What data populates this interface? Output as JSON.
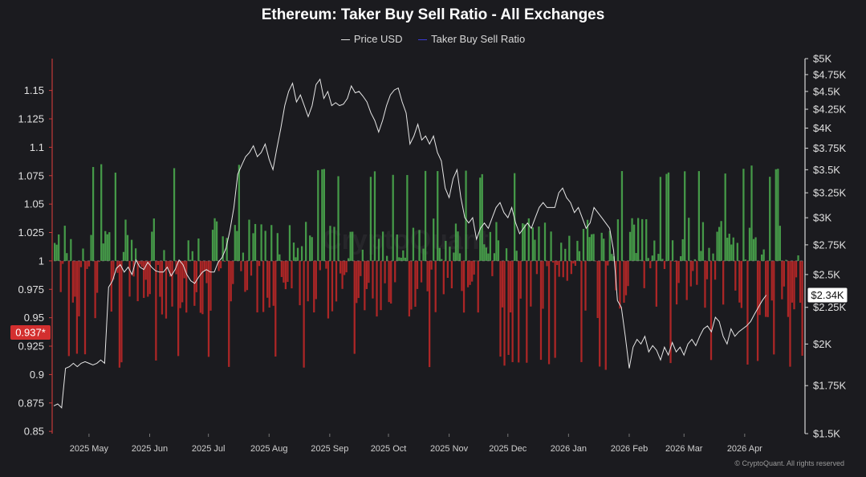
{
  "chart_data": {
    "type": "bar",
    "title": "Ethereum: Taker Buy Sell Ratio - All Exchanges",
    "legend": [
      {
        "name": "Price USD",
        "color": "#e0e0e0"
      },
      {
        "name": "Taker Buy Sell Ratio",
        "color": "#3b3bd6"
      }
    ],
    "y_left": {
      "ticks": [
        "1.15",
        "1.125",
        "1.1",
        "1.075",
        "1.05",
        "1.025",
        "1",
        "0.975",
        "0.95",
        "0.925",
        "0.9",
        "0.875",
        "0.85"
      ],
      "tick_values": [
        1.15,
        1.125,
        1.1,
        1.075,
        1.05,
        1.025,
        1,
        0.975,
        0.95,
        0.925,
        0.9,
        0.875,
        0.85
      ],
      "ylim": [
        0.848,
        1.178
      ],
      "baseline": 1
    },
    "y_right": {
      "ticks": [
        "$5K",
        "$4.75K",
        "$4.5K",
        "$4.25K",
        "$4K",
        "$3.75K",
        "$3.5K",
        "$3.25K",
        "$3K",
        "$2.75K",
        "$2.5K",
        "$2.25K",
        "$2K",
        "$1.75K",
        "$1.5K"
      ],
      "tick_values": [
        5000,
        4750,
        4500,
        4250,
        4000,
        3750,
        3500,
        3250,
        3000,
        2750,
        2500,
        2250,
        2000,
        1750,
        1500
      ],
      "scale": "log",
      "ylim": [
        1500,
        5000
      ]
    },
    "x_ticks": [
      "2025 May",
      "2025 Jun",
      "2025 Jul",
      "2025 Aug",
      "2025 Sep",
      "2025 Oct",
      "2025 Nov",
      "2025 Dec",
      "2026 Jan",
      "2026 Feb",
      "2026 Mar",
      "2026 Apr"
    ],
    "x_tick_days": [
      18,
      49,
      79,
      110,
      141,
      171,
      202,
      232,
      263,
      294,
      322,
      353
    ],
    "x_range_days": [
      0,
      383
    ],
    "current_ratio_label": "0.937*",
    "current_ratio": 0.937,
    "current_price_label": "$2.34K",
    "current_price": 2340,
    "price_usd": [
      [
        0,
        1640
      ],
      [
        2,
        1650
      ],
      [
        4,
        1630
      ],
      [
        6,
        1850
      ],
      [
        8,
        1860
      ],
      [
        10,
        1880
      ],
      [
        12,
        1860
      ],
      [
        14,
        1880
      ],
      [
        16,
        1890
      ],
      [
        18,
        1880
      ],
      [
        20,
        1870
      ],
      [
        22,
        1880
      ],
      [
        24,
        1900
      ],
      [
        26,
        1880
      ],
      [
        28,
        2400
      ],
      [
        30,
        2450
      ],
      [
        32,
        2550
      ],
      [
        34,
        2580
      ],
      [
        36,
        2520
      ],
      [
        38,
        2560
      ],
      [
        40,
        2500
      ],
      [
        42,
        2620
      ],
      [
        44,
        2560
      ],
      [
        46,
        2540
      ],
      [
        48,
        2600
      ],
      [
        50,
        2560
      ],
      [
        52,
        2530
      ],
      [
        54,
        2520
      ],
      [
        56,
        2520
      ],
      [
        58,
        2560
      ],
      [
        60,
        2490
      ],
      [
        62,
        2540
      ],
      [
        64,
        2620
      ],
      [
        66,
        2580
      ],
      [
        68,
        2500
      ],
      [
        70,
        2450
      ],
      [
        72,
        2430
      ],
      [
        74,
        2480
      ],
      [
        76,
        2520
      ],
      [
        78,
        2540
      ],
      [
        80,
        2520
      ],
      [
        82,
        2520
      ],
      [
        84,
        2600
      ],
      [
        86,
        2640
      ],
      [
        88,
        2720
      ],
      [
        90,
        2880
      ],
      [
        92,
        3100
      ],
      [
        94,
        3450
      ],
      [
        96,
        3550
      ],
      [
        98,
        3650
      ],
      [
        100,
        3700
      ],
      [
        102,
        3780
      ],
      [
        104,
        3650
      ],
      [
        106,
        3700
      ],
      [
        108,
        3800
      ],
      [
        110,
        3620
      ],
      [
        112,
        3500
      ],
      [
        114,
        3750
      ],
      [
        116,
        4000
      ],
      [
        118,
        4300
      ],
      [
        120,
        4500
      ],
      [
        122,
        4620
      ],
      [
        124,
        4350
      ],
      [
        126,
        4450
      ],
      [
        128,
        4300
      ],
      [
        130,
        4150
      ],
      [
        132,
        4300
      ],
      [
        134,
        4600
      ],
      [
        136,
        4680
      ],
      [
        138,
        4400
      ],
      [
        140,
        4500
      ],
      [
        142,
        4300
      ],
      [
        144,
        4340
      ],
      [
        146,
        4300
      ],
      [
        148,
        4320
      ],
      [
        150,
        4400
      ],
      [
        152,
        4580
      ],
      [
        154,
        4480
      ],
      [
        156,
        4500
      ],
      [
        158,
        4430
      ],
      [
        160,
        4350
      ],
      [
        162,
        4200
      ],
      [
        164,
        4100
      ],
      [
        166,
        3950
      ],
      [
        168,
        4100
      ],
      [
        170,
        4300
      ],
      [
        172,
        4450
      ],
      [
        174,
        4520
      ],
      [
        176,
        4550
      ],
      [
        178,
        4350
      ],
      [
        180,
        4200
      ],
      [
        182,
        3800
      ],
      [
        184,
        3900
      ],
      [
        186,
        4050
      ],
      [
        188,
        3850
      ],
      [
        190,
        3900
      ],
      [
        192,
        3800
      ],
      [
        194,
        3900
      ],
      [
        196,
        3700
      ],
      [
        198,
        3600
      ],
      [
        200,
        3300
      ],
      [
        202,
        3200
      ],
      [
        204,
        3400
      ],
      [
        206,
        3500
      ],
      [
        208,
        3200
      ],
      [
        210,
        3000
      ],
      [
        212,
        2950
      ],
      [
        214,
        3000
      ],
      [
        216,
        2800
      ],
      [
        218,
        2900
      ],
      [
        220,
        2950
      ],
      [
        222,
        2900
      ],
      [
        224,
        3000
      ],
      [
        226,
        3100
      ],
      [
        228,
        3150
      ],
      [
        230,
        3050
      ],
      [
        232,
        3000
      ],
      [
        234,
        3100
      ],
      [
        236,
        2950
      ],
      [
        238,
        2850
      ],
      [
        240,
        2900
      ],
      [
        242,
        2950
      ],
      [
        244,
        2900
      ],
      [
        246,
        3000
      ],
      [
        248,
        3100
      ],
      [
        250,
        3150
      ],
      [
        252,
        3100
      ],
      [
        254,
        3100
      ],
      [
        256,
        3100
      ],
      [
        258,
        3250
      ],
      [
        260,
        3300
      ],
      [
        262,
        3200
      ],
      [
        264,
        3150
      ],
      [
        266,
        3050
      ],
      [
        268,
        3100
      ],
      [
        270,
        3000
      ],
      [
        272,
        2900
      ],
      [
        274,
        2950
      ],
      [
        276,
        3100
      ],
      [
        278,
        3050
      ],
      [
        280,
        3000
      ],
      [
        282,
        2950
      ],
      [
        284,
        2900
      ],
      [
        286,
        2700
      ],
      [
        288,
        2300
      ],
      [
        290,
        2250
      ],
      [
        292,
        2050
      ],
      [
        294,
        1850
      ],
      [
        296,
        1980
      ],
      [
        298,
        2030
      ],
      [
        300,
        2000
      ],
      [
        302,
        2050
      ],
      [
        304,
        1950
      ],
      [
        306,
        1990
      ],
      [
        308,
        1960
      ],
      [
        310,
        1900
      ],
      [
        312,
        1980
      ],
      [
        314,
        1930
      ],
      [
        316,
        2010
      ],
      [
        318,
        1950
      ],
      [
        320,
        1980
      ],
      [
        322,
        1930
      ],
      [
        324,
        2000
      ],
      [
        326,
        2030
      ],
      [
        328,
        1990
      ],
      [
        330,
        2050
      ],
      [
        332,
        2100
      ],
      [
        334,
        2120
      ],
      [
        336,
        2080
      ],
      [
        338,
        2180
      ],
      [
        340,
        2150
      ],
      [
        342,
        2050
      ],
      [
        344,
        2000
      ],
      [
        346,
        2100
      ],
      [
        348,
        2050
      ],
      [
        350,
        2080
      ],
      [
        352,
        2100
      ],
      [
        354,
        2120
      ],
      [
        356,
        2150
      ],
      [
        358,
        2200
      ],
      [
        360,
        2250
      ],
      [
        362,
        2300
      ],
      [
        364,
        2340
      ]
    ]
  },
  "footer": {
    "copyright": "© CryptoQuant. All rights reserved",
    "watermark": "CryptoQuant"
  }
}
